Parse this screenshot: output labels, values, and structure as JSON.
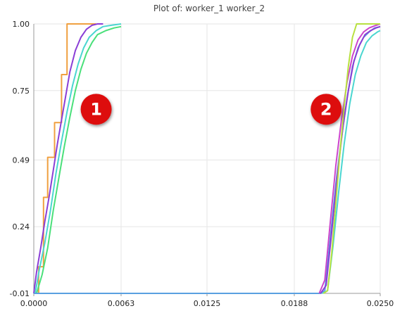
{
  "chart_data": {
    "type": "line",
    "title": "Plot of: worker_1 worker_2",
    "xlabel": "",
    "ylabel": "",
    "xlim": [
      0,
      0.025
    ],
    "ylim": [
      -0.01,
      1.0
    ],
    "x_ticks": [
      "0.0000",
      "0.0063",
      "0.0125",
      "0.0188",
      "0.0250"
    ],
    "x_tick_values": [
      0,
      0.0063,
      0.0125,
      0.0188,
      0.025
    ],
    "y_ticks": [
      "-0.01",
      "0.24",
      "0.49",
      "0.75",
      "1.00"
    ],
    "y_tick_values": [
      -0.01,
      0.24,
      0.49,
      0.75,
      1.0
    ],
    "grid": true,
    "annotations": [
      {
        "label": "1",
        "x": 0.0045,
        "y": 0.68
      },
      {
        "label": "2",
        "x": 0.0211,
        "y": 0.68
      }
    ],
    "series": [
      {
        "color": "#f0a040",
        "step": true,
        "x": [
          0,
          0.00035,
          0.00035,
          0.0007,
          0.0007,
          0.001,
          0.001,
          0.0015,
          0.0015,
          0.002,
          0.002,
          0.0024,
          0.0024,
          0.0028,
          0.0045
        ],
        "y": [
          -0.01,
          -0.01,
          0.09,
          0.09,
          0.35,
          0.35,
          0.5,
          0.5,
          0.63,
          0.63,
          0.81,
          0.81,
          1.0,
          1.0,
          1.0
        ]
      },
      {
        "color": "#8a3ed6",
        "x": [
          0,
          0.0002,
          0.0005,
          0.0008,
          0.0011,
          0.0014,
          0.0017,
          0.002,
          0.0023,
          0.0026,
          0.003,
          0.0034,
          0.0038,
          0.0042,
          0.0046,
          0.005
        ],
        "y": [
          -0.01,
          0.07,
          0.16,
          0.26,
          0.35,
          0.45,
          0.55,
          0.64,
          0.73,
          0.82,
          0.9,
          0.95,
          0.98,
          0.995,
          1.0,
          1.0
        ]
      },
      {
        "color": "#4ad6d0",
        "x": [
          0.0001,
          0.0004,
          0.0008,
          0.0012,
          0.0016,
          0.002,
          0.0024,
          0.0028,
          0.0032,
          0.0036,
          0.004,
          0.0045,
          0.005,
          0.0056,
          0.0063
        ],
        "y": [
          -0.01,
          0.08,
          0.18,
          0.3,
          0.44,
          0.56,
          0.67,
          0.77,
          0.85,
          0.91,
          0.95,
          0.975,
          0.99,
          0.995,
          1.0
        ]
      },
      {
        "color": "#4ae07a",
        "x": [
          0.0002,
          0.0006,
          0.001,
          0.0014,
          0.0018,
          0.0022,
          0.0026,
          0.003,
          0.0034,
          0.0038,
          0.0042,
          0.0046,
          0.0052,
          0.0058,
          0.0063
        ],
        "y": [
          -0.01,
          0.06,
          0.16,
          0.3,
          0.42,
          0.54,
          0.65,
          0.75,
          0.83,
          0.89,
          0.93,
          0.96,
          0.975,
          0.985,
          0.99
        ]
      },
      {
        "color": "#5aa0e0",
        "x": [
          0,
          0.0207,
          0.021,
          0.0214,
          0.0218,
          0.0222,
          0.0226,
          0.023,
          0.0234,
          0.0238,
          0.0242,
          0.0246,
          0.025
        ],
        "y": [
          -0.01,
          -0.01,
          0.0,
          0.2,
          0.4,
          0.57,
          0.72,
          0.84,
          0.91,
          0.95,
          0.97,
          0.985,
          0.99
        ]
      },
      {
        "color": "#cc44cc",
        "x": [
          0.0206,
          0.021,
          0.0214,
          0.0218,
          0.0222,
          0.0226,
          0.023,
          0.0234,
          0.0238,
          0.0242,
          0.0246,
          0.025
        ],
        "y": [
          -0.01,
          0.04,
          0.26,
          0.47,
          0.64,
          0.78,
          0.88,
          0.94,
          0.97,
          0.985,
          0.993,
          1.0
        ]
      },
      {
        "color": "#8a3ed6",
        "x": [
          0.0207,
          0.0211,
          0.0215,
          0.0219,
          0.0223,
          0.0227,
          0.0231,
          0.0235,
          0.0239,
          0.0243,
          0.0247,
          0.025
        ],
        "y": [
          -0.01,
          0.02,
          0.22,
          0.43,
          0.61,
          0.75,
          0.86,
          0.92,
          0.96,
          0.975,
          0.985,
          0.99
        ]
      },
      {
        "color": "#4ad6d0",
        "x": [
          0.0208,
          0.0212,
          0.0216,
          0.022,
          0.0224,
          0.0228,
          0.0232,
          0.0236,
          0.024,
          0.0244,
          0.0248,
          0.025
        ],
        "y": [
          -0.01,
          0.0,
          0.17,
          0.37,
          0.55,
          0.7,
          0.81,
          0.88,
          0.93,
          0.955,
          0.97,
          0.975
        ]
      },
      {
        "color": "#b8e040",
        "x": [
          0.0209,
          0.0212,
          0.0215,
          0.0218,
          0.0221,
          0.0224,
          0.0227,
          0.023,
          0.0233,
          0.0236,
          0.025
        ],
        "y": [
          -0.01,
          0.0,
          0.14,
          0.33,
          0.52,
          0.69,
          0.84,
          0.95,
          1.0,
          1.0,
          1.0
        ]
      }
    ]
  }
}
